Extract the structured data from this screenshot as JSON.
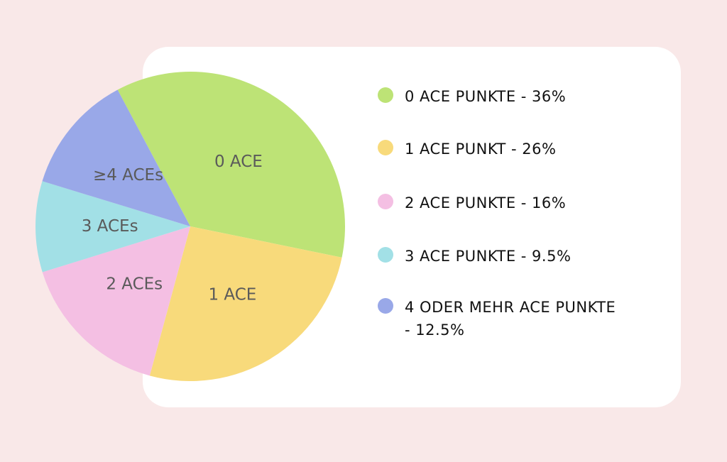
{
  "chart_data": {
    "type": "pie",
    "slices": [
      {
        "label": "0 ACE",
        "value": 36,
        "color": "#bde376"
      },
      {
        "label": "1 ACE",
        "value": 26,
        "color": "#f8da7b"
      },
      {
        "label": "2 ACEs",
        "value": 16,
        "color": "#f4bfe3"
      },
      {
        "label": "3 ACEs",
        "value": 9.5,
        "color": "#a2e0e6"
      },
      {
        "label": "≥4 ACEs",
        "value": 12.5,
        "color": "#99a8e8"
      }
    ],
    "legend": [
      {
        "text": "0 ACE PUNKTE - 36%",
        "color": "#bde376"
      },
      {
        "text": "1 ACE PUNKT - 26%",
        "color": "#f8da7b"
      },
      {
        "text": "2 ACE PUNKTE - 16%",
        "color": "#f4bfe3"
      },
      {
        "text": "3 ACE PUNKTE - 9.5%",
        "color": "#a2e0e6"
      },
      {
        "text": "4 ODER MEHR ACE PUNKTE - 12.5%",
        "color": "#99a8e8"
      }
    ],
    "legend_position": "right"
  }
}
